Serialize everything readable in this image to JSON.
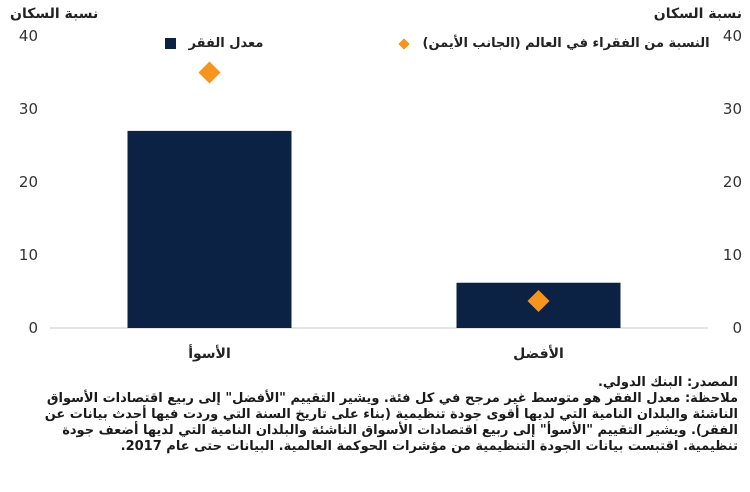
{
  "chart_data": {
    "type": "bar",
    "categories": [
      "الأسوأ",
      "الأفضل"
    ],
    "series": [
      {
        "name": "معدل الفقر",
        "values": [
          27,
          6.2
        ],
        "color": "#0b2244",
        "axis": "left",
        "mark": "bar"
      },
      {
        "name": "النسبة من الفقراء في العالم (الجانب الأيمن)",
        "values": [
          35,
          3.7
        ],
        "color": "#f7941d",
        "axis": "right",
        "mark": "diamond"
      }
    ],
    "y_left": {
      "label": "نسبة السكان",
      "ticks": [
        0,
        10,
        20,
        30,
        40
      ],
      "ylim": [
        0,
        40
      ]
    },
    "y_right": {
      "label": "نسبة السكان",
      "ticks": [
        0,
        10,
        20,
        30,
        40
      ],
      "ylim": [
        0,
        40
      ]
    },
    "grid": false,
    "legend": "top"
  },
  "notes": {
    "source": "المصدر: البنك الدولي.",
    "note": "ملاحظة: معدل الفقر هو متوسط غير مرجح في كل فئة. ويشير التقييم \"الأفضل\" إلى ربيع اقتصادات الأسواق الناشئة والبلدان النامية التي لديها أقوى جودة تنظيمية (بناء على تاريخ السنة التي وردت فيها أحدث بيانات عن الفقر). ويشير التقييم \"الأسوأ\" إلى ربيع اقتصادات الأسواق الناشئة والبلدان النامية التي لديها أضعف جودة تنظيمية. اقتبست بيانات الجودة التنظيمية من مؤشرات الحوكمة العالمية. البيانات حتى عام 2017."
  }
}
